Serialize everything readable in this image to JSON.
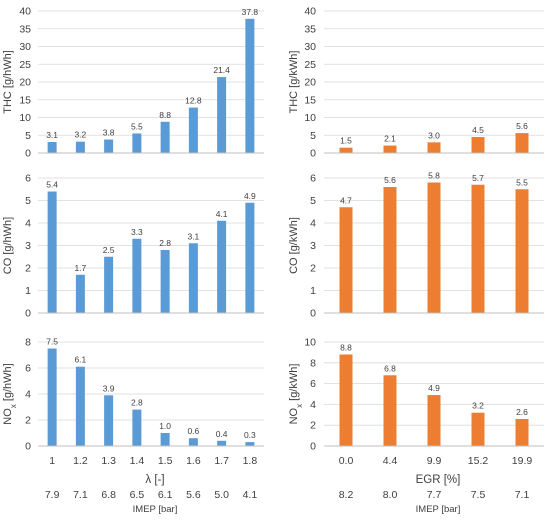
{
  "chart_data": {
    "type": "bar",
    "colors": {
      "left": "#5b9bd5",
      "right": "#ed7d31",
      "grid": "#d9d9d9",
      "text": "#404040"
    },
    "columns": [
      {
        "side": "left",
        "categories": [
          "1",
          "1.2",
          "1.3",
          "1.4",
          "1.5",
          "1.6",
          "1.7",
          "1.8"
        ],
        "xlabel": "λ [-]",
        "imep_label": "IMEP [bar]",
        "imep_values": [
          "7.9",
          "7.1",
          "6.8",
          "6.5",
          "6.1",
          "5.6",
          "5.0",
          "4.1"
        ],
        "panels": [
          {
            "ylabel": "THC [g/hWh]",
            "ylim": [
              0,
              40
            ],
            "yticks": [
              0,
              5,
              10,
              15,
              20,
              25,
              30,
              35,
              40
            ],
            "values": [
              3.1,
              3.2,
              3.8,
              5.5,
              8.8,
              12.8,
              21.4,
              37.8
            ],
            "labels": [
              "3.1",
              "3.2",
              "3.8",
              "5.5",
              "8.8",
              "12.8",
              "21.4",
              "37.8"
            ]
          },
          {
            "ylabel": "CO [g/hWh]",
            "ylim": [
              0,
              6
            ],
            "yticks": [
              0,
              1,
              2,
              3,
              4,
              5,
              6
            ],
            "values": [
              5.4,
              1.7,
              2.5,
              3.3,
              2.8,
              3.1,
              4.1,
              4.9
            ],
            "labels": [
              "5.4",
              "1.7",
              "2.5",
              "3.3",
              "2.8",
              "3.1",
              "4.1",
              "4.9"
            ]
          },
          {
            "ylabel": "NOx [g/hWh]",
            "ylim": [
              0,
              8
            ],
            "yticks": [
              0,
              2,
              4,
              6,
              8
            ],
            "values": [
              7.5,
              6.1,
              3.9,
              2.8,
              1.0,
              0.6,
              0.4,
              0.3
            ],
            "labels": [
              "7.5",
              "6.1",
              "3.9",
              "2.8",
              "1.0",
              "0.6",
              "0.4",
              "0.3"
            ]
          }
        ]
      },
      {
        "side": "right",
        "categories": [
          "0.0",
          "4.4",
          "9.9",
          "15.2",
          "19.9"
        ],
        "xlabel": "EGR [%]",
        "imep_label": "IMEP [bar]",
        "imep_values": [
          "8.2",
          "8.0",
          "7.7",
          "7.5",
          "7.1"
        ],
        "panels": [
          {
            "ylabel": "THC [g/kWh]",
            "ylim": [
              0,
              40
            ],
            "yticks": [
              0,
              5,
              10,
              15,
              20,
              25,
              30,
              35,
              40
            ],
            "values": [
              1.5,
              2.1,
              3.0,
              4.5,
              5.6
            ],
            "labels": [
              "1.5",
              "2.1",
              "3.0",
              "4.5",
              "5.6"
            ]
          },
          {
            "ylabel": "CO [g/kWh]",
            "ylim": [
              0,
              6
            ],
            "yticks": [
              0,
              1,
              2,
              3,
              4,
              5,
              6
            ],
            "values": [
              4.7,
              5.6,
              5.8,
              5.7,
              5.5
            ],
            "labels": [
              "4.7",
              "5.6",
              "5.8",
              "5.7",
              "5.5"
            ]
          },
          {
            "ylabel": "NOx [g/kWh]",
            "ylim": [
              0,
              10
            ],
            "yticks": [
              0,
              2,
              4,
              6,
              8,
              10
            ],
            "values": [
              8.8,
              6.8,
              4.9,
              3.2,
              2.6
            ],
            "labels": [
              "8.8",
              "6.8",
              "4.9",
              "3.2",
              "2.6"
            ]
          }
        ]
      }
    ]
  }
}
